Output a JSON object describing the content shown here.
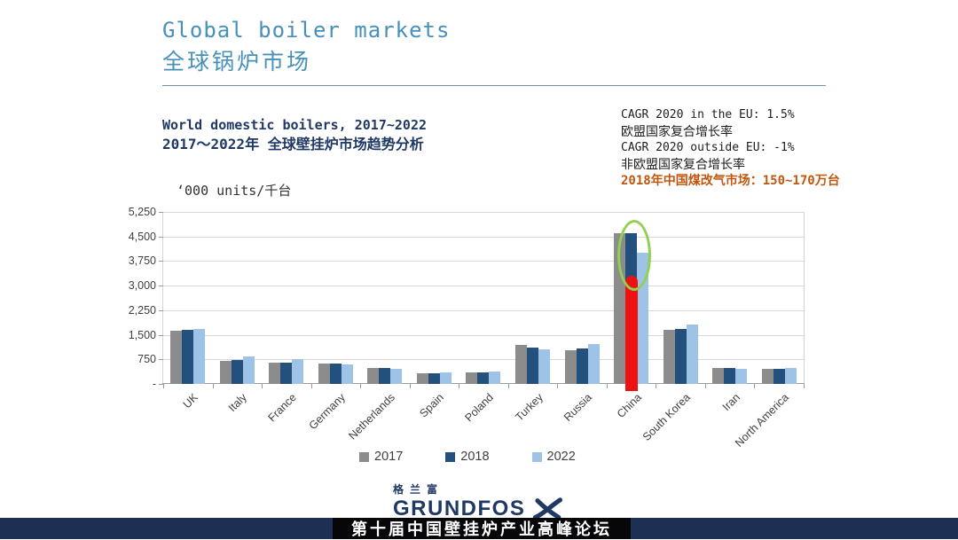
{
  "header": {
    "title_en": "Global boiler markets",
    "title_zh": "全球锅炉市场"
  },
  "chart_header": {
    "line1": "World domestic boilers, 2017~2022",
    "line2": "2017～2022年 全球壁挂炉市场趋势分析",
    "units_label": "‘000 units/千台"
  },
  "annotations": {
    "cagr_eu_en": "CAGR 2020 in the EU: 1.5%",
    "cagr_eu_zh": "欧盟国家复合增长率",
    "cagr_non_eu_en": "CAGR 2020 outside EU: -1%",
    "cagr_non_eu_zh": "非欧盟国家复合增长率",
    "china_market": "2018年中国煤改气市场：150~170万台"
  },
  "chart_data": {
    "type": "bar",
    "title": "World domestic boilers, 2017~2022",
    "ylabel": "‘000 units/千台",
    "xlabel": "",
    "ylim": [
      0,
      5250
    ],
    "ytick_interval": 750,
    "ytick_labels": [
      "5,250",
      "4,500",
      "3,750",
      "3,000",
      "2,250",
      "1,500",
      "750",
      "-"
    ],
    "grid": true,
    "legend_position": "bottom",
    "categories": [
      "UK",
      "Italy",
      "France",
      "Germany",
      "Netherlands",
      "Spain",
      "Poland",
      "Turkey",
      "Russia",
      "China",
      "South Korea",
      "Iran",
      "North America"
    ],
    "series": [
      {
        "name": "2017",
        "color": "#8c8c8c",
        "values": [
          1620,
          700,
          640,
          620,
          480,
          330,
          350,
          1200,
          1030,
          4600,
          1650,
          480,
          450
        ]
      },
      {
        "name": "2018",
        "color": "#24507e",
        "values": [
          1650,
          730,
          660,
          630,
          480,
          330,
          360,
          1120,
          1080,
          4600,
          1680,
          490,
          460
        ]
      },
      {
        "name": "2022",
        "color": "#9dc3e6",
        "values": [
          1680,
          830,
          750,
          600,
          460,
          350,
          390,
          1050,
          1210,
          4000,
          1810,
          460,
          480
        ]
      }
    ],
    "highlight": {
      "category": "China",
      "series": "2018",
      "red_overlay_top_value": 3300,
      "red_color": "#ee1111",
      "ellipse_color": "#92d050",
      "note": "red overlay bar on China 2018 column, green ellipse circling column top"
    }
  },
  "legend": {
    "items": [
      {
        "label": "2017",
        "color": "#8c8c8c"
      },
      {
        "label": "2018",
        "color": "#24507e"
      },
      {
        "label": "2022",
        "color": "#9dc3e6"
      }
    ]
  },
  "footer": {
    "logo_zh": "格兰富",
    "logo_en": "GRUNDFOS",
    "banner_text": "第十届中国壁挂炉产业高峰论坛"
  },
  "colors": {
    "title_blue": "#4690ba",
    "navy_text": "#1f3864",
    "orange_text": "#c0570f",
    "gridline": "#d9d9d9",
    "axis": "#9a9a9a",
    "banner_navy": "#1e2f54",
    "banner_black": "#070709"
  }
}
